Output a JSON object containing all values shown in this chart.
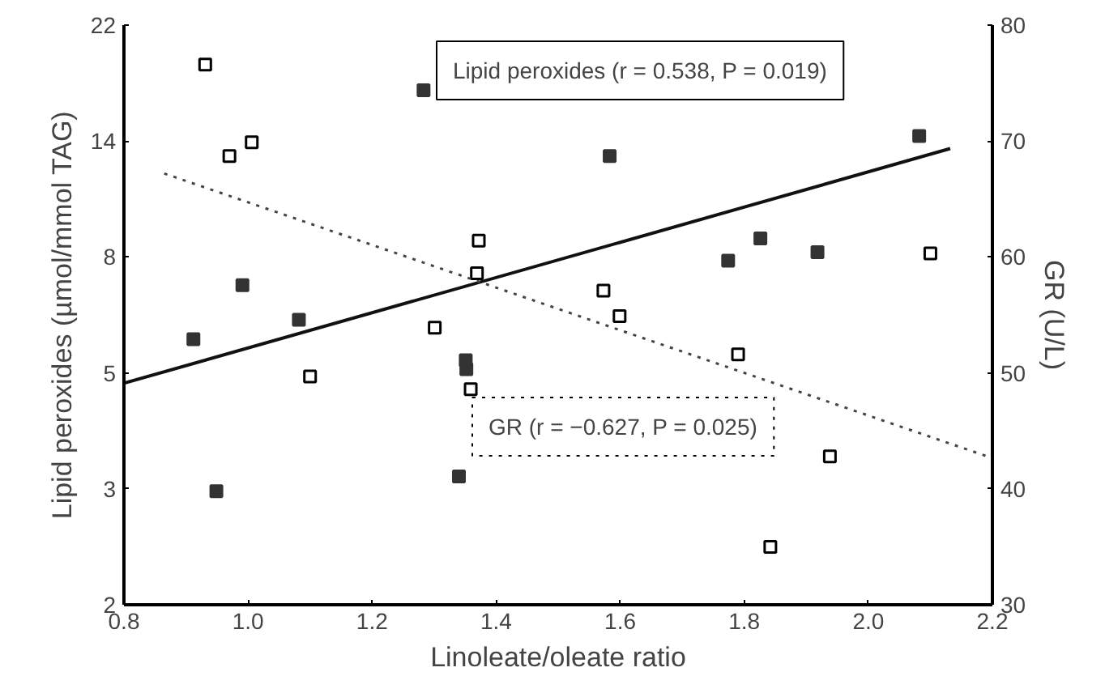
{
  "chart_data": {
    "type": "scatter",
    "xlabel": "Linoleate/oleate ratio",
    "ylabel": "Lipid peroxides (µmol/mmol TAG)",
    "y2label": "GR (U/L)",
    "xlim": [
      0.8,
      2.2
    ],
    "xticks": [
      0.8,
      {
        "value": 1,
        "label": "1.0"
      },
      1.2,
      1.4,
      1.6,
      1.8,
      {
        "value": 2,
        "label": "2.0"
      },
      2.2
    ],
    "ylim": [
      2,
      22
    ],
    "log": "y",
    "yticks": [
      2,
      {
        "value": 3.23,
        "label": "3"
      },
      {
        "value": 5.22,
        "label": "5"
      },
      {
        "value": 8.43,
        "label": "8"
      },
      {
        "value": 13.62,
        "label": "14"
      },
      22
    ],
    "y2lim": [
      30,
      80
    ],
    "y2ticks": [
      30,
      40,
      50,
      60,
      70,
      80
    ],
    "grid": false,
    "series": [
      {
        "color": "#333333",
        "marker": "square",
        "x": [
          0.912,
          0.949,
          0.991,
          1.082,
          1.283,
          1.34,
          1.351,
          1.352,
          1.583,
          1.774,
          1.826,
          1.918,
          2.082
        ],
        "values": [
          6.0,
          3.2,
          7.5,
          6.5,
          16.8,
          3.4,
          5.5,
          5.3,
          12.8,
          8.3,
          9.1,
          8.6,
          13.9
        ]
      },
      {
        "color": "#000000",
        "marker": "square",
        "axis": "y2",
        "x": [
          0.931,
          0.97,
          1.006,
          1.1,
          1.301,
          1.359,
          1.369,
          1.372,
          1.573,
          1.599,
          1.79,
          1.842,
          1.938,
          2.1
        ],
        "values": [
          76.6,
          68.7,
          69.9,
          49.7,
          53.9,
          48.6,
          58.6,
          61.4,
          57.1,
          54.9,
          51.6,
          35.0,
          42.8,
          60.3
        ]
      },
      {
        "type": "line",
        "color": "#111111",
        "line_style": "solid",
        "x": [
          0.8,
          2.132
        ],
        "values": [
          5.0,
          13.2
        ]
      },
      {
        "type": "line",
        "color": "#444444",
        "axis": "y2",
        "line_style": "dotted",
        "x": [
          0.865,
          2.197
        ],
        "values": [
          67.2,
          42.7
        ]
      }
    ],
    "annotations": [
      "Lipid peroxides (r = 0.538, P = 0.019)",
      "GR (r = −0.627, P = 0.025)"
    ]
  }
}
